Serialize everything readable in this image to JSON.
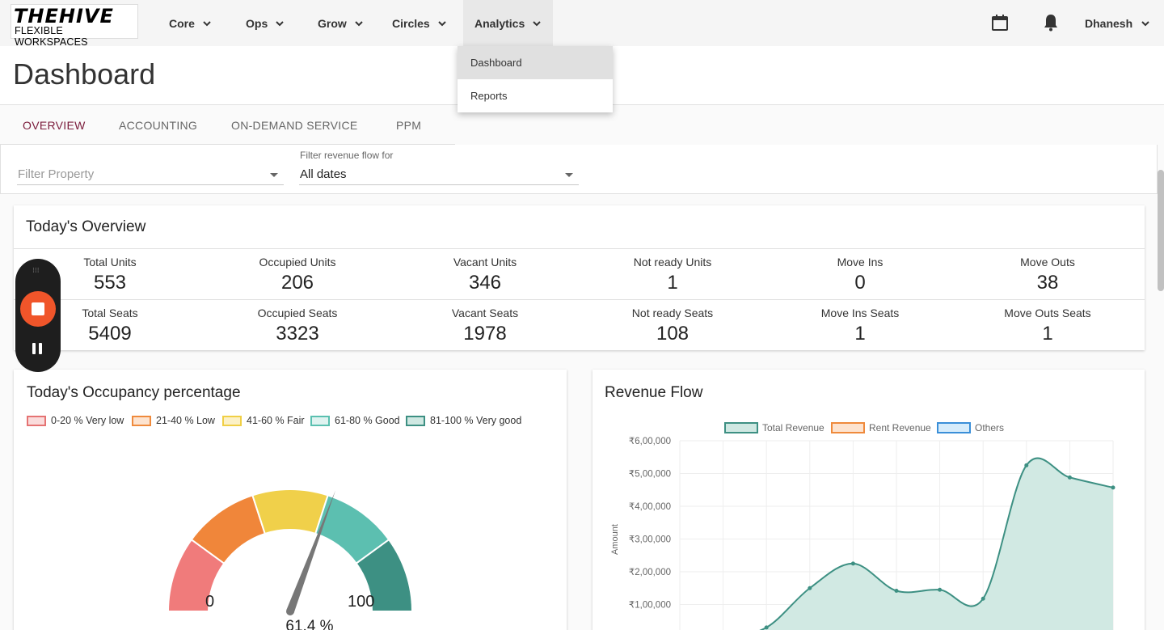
{
  "nav": {
    "logo_main": "THEHIVE",
    "logo_sub": "FLEXIBLE WORKSPACES",
    "items": [
      "Core",
      "Ops",
      "Grow",
      "Circles",
      "Analytics"
    ],
    "user": "Dhanesh"
  },
  "dropdown": {
    "items": [
      "Dashboard",
      "Reports"
    ]
  },
  "page": {
    "title": "Dashboard"
  },
  "tabs": [
    "OVERVIEW",
    "ACCOUNTING",
    "ON-DEMAND SERVICE",
    "PPM"
  ],
  "filters": {
    "property_placeholder": "Filter Property",
    "revenue_caption": "Filter revenue flow for",
    "revenue_value": "All dates"
  },
  "overview": {
    "title": "Today's Overview",
    "units": [
      {
        "label": "Total Units",
        "value": "553"
      },
      {
        "label": "Occupied Units",
        "value": "206"
      },
      {
        "label": "Vacant Units",
        "value": "346"
      },
      {
        "label": "Not ready Units",
        "value": "1"
      },
      {
        "label": "Move Ins",
        "value": "0"
      },
      {
        "label": "Move Outs",
        "value": "38"
      }
    ],
    "seats": [
      {
        "label": "Total Seats",
        "value": "5409"
      },
      {
        "label": "Occupied Seats",
        "value": "3323"
      },
      {
        "label": "Vacant Seats",
        "value": "1978"
      },
      {
        "label": "Not ready Seats",
        "value": "108"
      },
      {
        "label": "Move Ins Seats",
        "value": "1"
      },
      {
        "label": "Move Outs Seats",
        "value": "1"
      }
    ]
  },
  "occupancy": {
    "title": "Today's Occupancy percentage",
    "legend": [
      {
        "label": "0-20 % Very low",
        "fill": "#fadcdc",
        "stroke": "#e57373"
      },
      {
        "label": "21-40 % Low",
        "fill": "#fde3cf",
        "stroke": "#ef8a3c"
      },
      {
        "label": "41-60 % Fair",
        "fill": "#fcf1c6",
        "stroke": "#f0cf45"
      },
      {
        "label": "61-80 % Good",
        "fill": "#dff3f0",
        "stroke": "#5ac0b0"
      },
      {
        "label": "81-100 % Very good",
        "fill": "#cfe8e2",
        "stroke": "#3d9083"
      }
    ],
    "gauge_min": "0",
    "gauge_max": "100",
    "value": 61.4,
    "value_label": "61.4 %"
  },
  "revenue": {
    "title": "Revenue Flow",
    "legend": [
      {
        "label": "Total Revenue",
        "fill": "#cfe8e2",
        "stroke": "#3d9083"
      },
      {
        "label": "Rent Revenue",
        "fill": "#fde3cf",
        "stroke": "#ef8a3c"
      },
      {
        "label": "Others",
        "fill": "#d6ecfb",
        "stroke": "#3a8fd8"
      }
    ],
    "ylabel": "Amount"
  },
  "chart_data": {
    "type": "area",
    "ylabel": "Amount",
    "ylim": [
      0,
      600000
    ],
    "y_ticks": [
      "₹1,00,000",
      "₹2,00,000",
      "₹3,00,000",
      "₹4,00,000",
      "₹5,00,000",
      "₹6,00,000"
    ],
    "series": [
      {
        "name": "Total Revenue",
        "values": [
          0,
          0,
          30000,
          150000,
          225000,
          142000,
          145000,
          118000,
          525000,
          488000,
          457000
        ]
      },
      {
        "name": "Rent Revenue",
        "values": []
      },
      {
        "name": "Others",
        "values": []
      }
    ]
  },
  "colors": {
    "accent": "#7a1a3a",
    "teal": "#3d9083",
    "teal_fill": "#cfe8e2",
    "recorder_red": "#f0552a"
  },
  "icons": {
    "calendar": "calendar-icon",
    "bell": "bell-icon",
    "chevron": "chevron-down-icon"
  }
}
